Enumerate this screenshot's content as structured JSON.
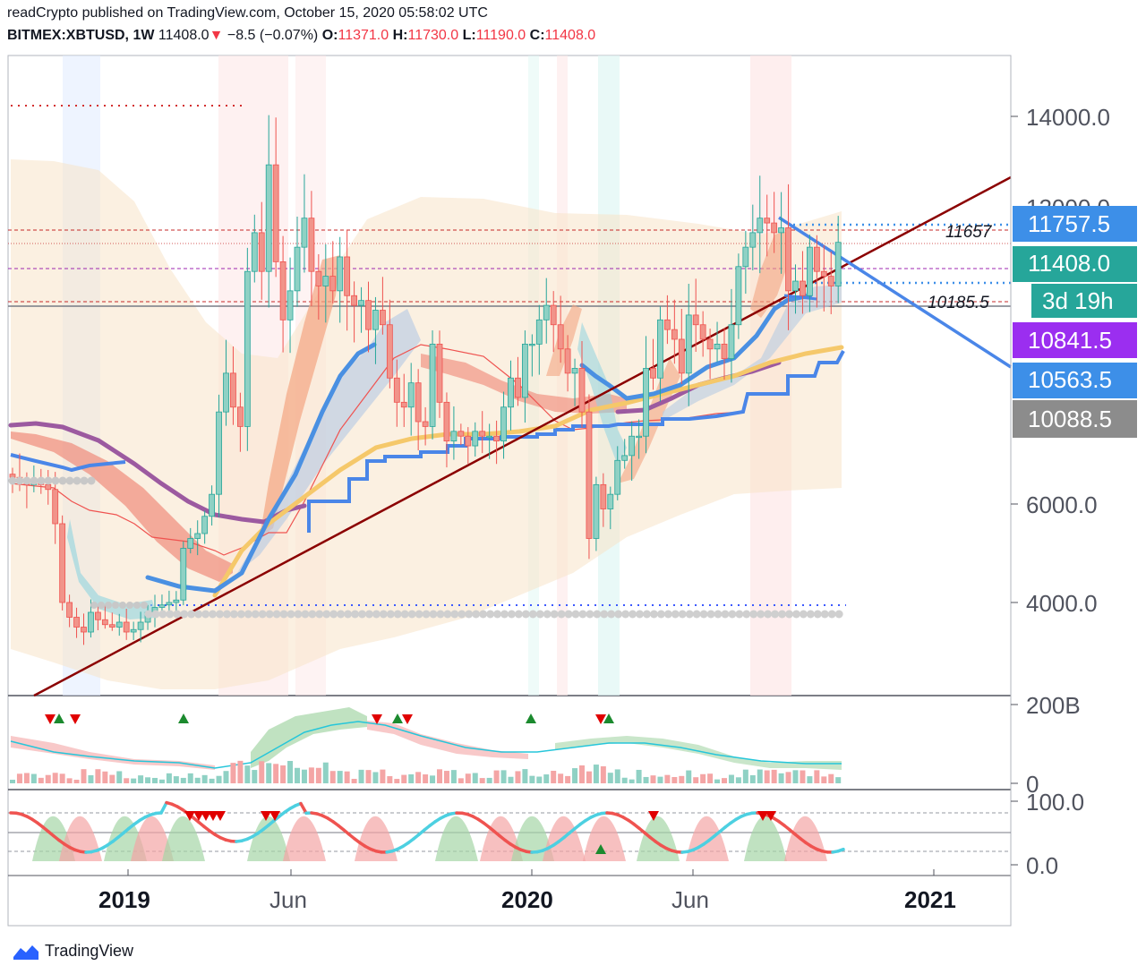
{
  "header": {
    "line1": "readCrypto published on TradingView.com, October 15, 2020 05:58:02 UTC",
    "symbol": "BITMEX:XBTUSD, 1W",
    "last": "11408.0",
    "change": "−8.5 (−0.07%)",
    "o_label": "O:",
    "o_val": "11371.0",
    "h_label": "H:",
    "h_val": "11730.0",
    "l_label": "L:",
    "l_val": "11190.0",
    "c_label": "C:",
    "c_val": "11408.0"
  },
  "colors": {
    "up": "#26a69a",
    "down": "#ef5350",
    "trend_red": "#8b0000",
    "trend_blue": "#4a86e8",
    "ma_purple": "#9c5aa0",
    "ma_yellow": "#f5c86a",
    "ma_blue": "#4a90e2",
    "label_blue": "#3d8fe8",
    "label_teal": "#26a69a",
    "label_purple": "#9b2ef0",
    "label_gray": "#8c8c8c"
  },
  "chart_data": {
    "type": "candlestick",
    "title": "BITMEX:XBTUSD, 1W",
    "yaxis_ticks": [
      "14000.0",
      "6000.0",
      "4000.0"
    ],
    "yaxis_partial": "12000.0",
    "xaxis_ticks": [
      {
        "label": "2019",
        "year": true
      },
      {
        "label": "Jun",
        "year": false
      },
      {
        "label": "2020",
        "year": true
      },
      {
        "label": "Jun",
        "year": false
      },
      {
        "label": "2021",
        "year": true
      }
    ],
    "price_labels": [
      {
        "text": "11757.5",
        "value": 11757.5,
        "color": "#3d8fe8"
      },
      {
        "text": "11408.0",
        "value": 11408.0,
        "color": "#26a69a"
      },
      {
        "text": "3d 19h",
        "value": 11050,
        "color": "#26a69a"
      },
      {
        "text": "10841.5",
        "value": 10841.5,
        "color": "#9b2ef0"
      },
      {
        "text": "10563.5",
        "value": 10563.5,
        "color": "#3d8fe8"
      },
      {
        "text": "10088.5",
        "value": 10088.5,
        "color": "#8c8c8c"
      }
    ],
    "levels": [
      {
        "text": "11657",
        "value": 11657
      },
      {
        "text": "10185.5",
        "value": 10185.5
      }
    ],
    "weekly_closes": [
      6550,
      6500,
      6400,
      6450,
      6400,
      6300,
      5600,
      4000,
      3700,
      3500,
      3400,
      3800,
      3650,
      3550,
      3500,
      3600,
      3400,
      3450,
      3600,
      3800,
      3900,
      3950,
      4000,
      4050,
      5100,
      5300,
      5400,
      5750,
      6200,
      7900,
      8700,
      8000,
      7600,
      10800,
      11600,
      10800,
      13000,
      11000,
      9800,
      10400,
      11300,
      11900,
      10800,
      10500,
      10700,
      10400,
      11100,
      10300,
      10100,
      10200,
      9600,
      10000,
      9700,
      8600,
      8100,
      8000,
      8500,
      7700,
      7600,
      9300,
      8100,
      7300,
      7500,
      7400,
      7200,
      7500,
      7400,
      7400,
      7300,
      8000,
      8600,
      8200,
      9300,
      9300,
      9800,
      10100,
      9700,
      9200,
      8700,
      8800,
      7900,
      5300,
      6400,
      5900,
      6200,
      6900,
      7000,
      7400,
      7400,
      8800,
      8600,
      9800,
      9600,
      9400,
      8700,
      9900,
      9700,
      9400,
      9200,
      9300,
      9000,
      9700,
      10900,
      11300,
      11600,
      11900,
      11800,
      11600,
      11700,
      10400,
      10600,
      10300,
      11300,
      10800,
      10700,
      10500,
      11400
    ]
  },
  "indicators": {
    "volume_axis": [
      "200B",
      "0"
    ],
    "oscillator_axis": [
      "100.0",
      "0.0"
    ]
  },
  "footer": {
    "brand": "TradingView"
  }
}
